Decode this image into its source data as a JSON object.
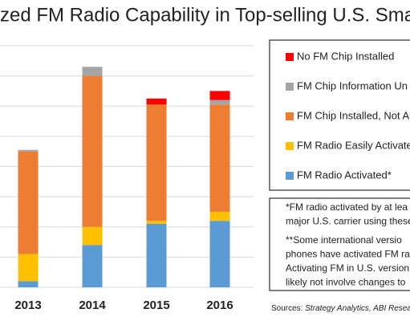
{
  "chart_data": {
    "type": "stacked_bar",
    "title": "zed FM Radio Capability in Top-selling U.S. Smart",
    "categories": [
      "2013",
      "2014",
      "2015",
      "2016"
    ],
    "series": [
      {
        "name": "FM Radio Activated*",
        "color": "#5b9bd5",
        "values": [
          0.2,
          1.4,
          2.1,
          2.2
        ]
      },
      {
        "name": "FM Radio Easily Activate",
        "color": "#ffc000",
        "values": [
          0.9,
          0.6,
          0.1,
          0.3
        ]
      },
      {
        "name": "FM Chip Installed, Not A",
        "color": "#ed7d31",
        "values": [
          3.4,
          5.0,
          3.85,
          3.55
        ]
      },
      {
        "name": "FM Chip Information Un",
        "color": "#a5a5a5",
        "values": [
          0.05,
          0.3,
          0,
          0.15
        ]
      },
      {
        "name": "No FM Chip Installed",
        "color": "#ff0000",
        "values": [
          0,
          0,
          0.2,
          0.3
        ]
      }
    ],
    "ylim": [
      0,
      9
    ],
    "yticks": [
      0,
      1,
      2,
      3,
      4,
      5,
      6,
      7,
      8
    ],
    "grid": true,
    "notes": [
      "*FM radio activated by at lea",
      "major U.S. carrier using these",
      "**Some international versio",
      "phones have activated FM ra",
      "Activating FM in U.S. version",
      "likely not involve changes to"
    ],
    "sources_label": "Sources:",
    "sources": "Strategy Analytics, ABI Research"
  }
}
